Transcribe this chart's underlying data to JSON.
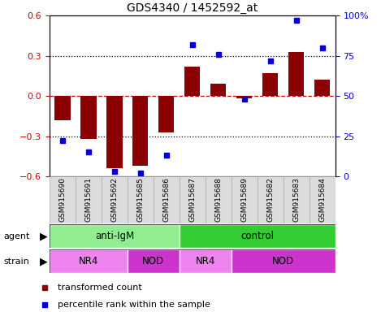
{
  "title": "GDS4340 / 1452592_at",
  "samples": [
    "GSM915690",
    "GSM915691",
    "GSM915692",
    "GSM915685",
    "GSM915686",
    "GSM915687",
    "GSM915688",
    "GSM915689",
    "GSM915682",
    "GSM915683",
    "GSM915684"
  ],
  "bar_values": [
    -0.18,
    -0.32,
    -0.54,
    -0.52,
    -0.27,
    0.22,
    0.09,
    -0.02,
    0.17,
    0.33,
    0.12
  ],
  "percentile_values": [
    22,
    15,
    3,
    2,
    13,
    82,
    76,
    48,
    72,
    97,
    80
  ],
  "ylim_left": [
    -0.6,
    0.6
  ],
  "ylim_right": [
    0,
    100
  ],
  "yticks_left": [
    -0.6,
    -0.3,
    0.0,
    0.3,
    0.6
  ],
  "yticks_right": [
    0,
    25,
    50,
    75,
    100
  ],
  "ytick_labels_right": [
    "0",
    "25",
    "50",
    "75",
    "100%"
  ],
  "hlines_dotted": [
    0.3,
    -0.3
  ],
  "hline_dashed": 0.0,
  "bar_color": "#8B0000",
  "dot_color": "#0000CD",
  "agent_groups": [
    {
      "label": "anti-IgM",
      "start": 0,
      "end": 5,
      "color": "#90EE90"
    },
    {
      "label": "control",
      "start": 5,
      "end": 11,
      "color": "#33CC33"
    }
  ],
  "strain_groups": [
    {
      "label": "NR4",
      "start": 0,
      "end": 3,
      "color": "#EE82EE"
    },
    {
      "label": "NOD",
      "start": 3,
      "end": 5,
      "color": "#CC33CC"
    },
    {
      "label": "NR4",
      "start": 5,
      "end": 7,
      "color": "#EE82EE"
    },
    {
      "label": "NOD",
      "start": 7,
      "end": 11,
      "color": "#CC33CC"
    }
  ],
  "legend_bar_color": "#8B0000",
  "legend_dot_color": "#0000CD",
  "legend_bar_label": "transformed count",
  "legend_dot_label": "percentile rank within the sample",
  "agent_label": "agent",
  "strain_label": "strain",
  "bar_width": 0.6,
  "tick_label_color_left": "#CC0000",
  "tick_label_color_right": "#0000CC",
  "dashed_zero_color": "#CC0000",
  "dotted_line_color": "black",
  "xticklabel_bg": "#DCDCDC",
  "xticklabel_border": "#AAAAAA"
}
